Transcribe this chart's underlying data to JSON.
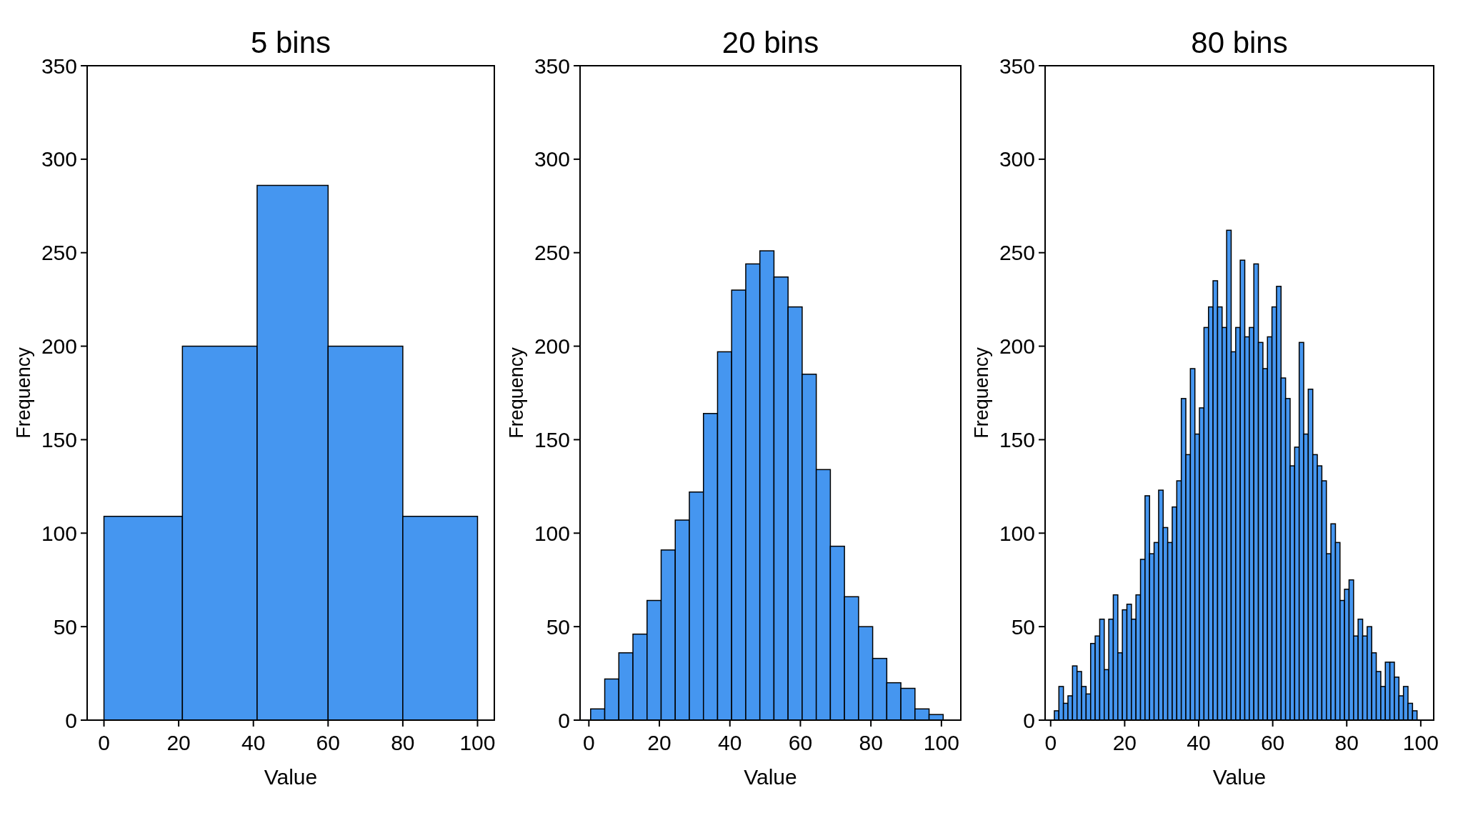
{
  "chart_data": [
    {
      "type": "histogram",
      "title": "5 bins",
      "xlabel": "Value",
      "ylabel": "Frequency",
      "color": "#4596f0",
      "bins": [
        0,
        21,
        41,
        60,
        80,
        100
      ],
      "values": [
        109,
        200,
        286,
        200,
        109
      ],
      "xlim": [
        -4.5,
        104.5
      ],
      "xticks": [
        0,
        20,
        40,
        60,
        80,
        100
      ],
      "ylim": [
        0,
        350
      ],
      "yticks": [
        0,
        50,
        100,
        150,
        200,
        250,
        300,
        350
      ],
      "grid": false
    },
    {
      "type": "histogram",
      "title": "20 bins",
      "xlabel": "Value",
      "ylabel": "Frequency",
      "color": "#4596f0",
      "bins": [
        0.5,
        4.5,
        8.5,
        12.5,
        16.5,
        20.5,
        24.5,
        28.5,
        32.5,
        36.5,
        40.5,
        44.5,
        48.5,
        52.5,
        56.5,
        60.5,
        64.5,
        68.5,
        72.5,
        76.5,
        80.5,
        84.5,
        88.5,
        92.5,
        96.5,
        100.5
      ],
      "values": [
        6,
        22,
        36,
        46,
        64,
        91,
        107,
        122,
        164,
        197,
        230,
        244,
        251,
        237,
        221,
        185,
        134,
        93,
        66,
        50,
        33,
        20,
        17,
        6,
        3
      ],
      "xlim": [
        -2.5,
        105.5
      ],
      "xticks": [
        0,
        20,
        40,
        60,
        80,
        100
      ],
      "ylim": [
        0,
        350
      ],
      "yticks": [
        0,
        50,
        100,
        150,
        200,
        250,
        300,
        350
      ],
      "grid": false
    },
    {
      "type": "histogram",
      "title": "80 bins",
      "xlabel": "Value",
      "ylabel": "Frequency",
      "color": "#4596f0",
      "bins": [
        1,
        2.225,
        3.45,
        4.675,
        5.9,
        7.125,
        8.35,
        9.575,
        10.8,
        12.025,
        13.25,
        14.475,
        15.7,
        16.925,
        18.15,
        19.375,
        20.6,
        21.825,
        23.05,
        24.275,
        25.5,
        26.725,
        27.95,
        29.175,
        30.4,
        31.625,
        32.85,
        34.075,
        35.3,
        36.525,
        37.75,
        38.975,
        40.2,
        41.425,
        42.65,
        43.875,
        45.1,
        46.325,
        47.55,
        48.775,
        50,
        51.225,
        52.45,
        53.675,
        54.9,
        56.125,
        57.35,
        58.575,
        59.8,
        61.025,
        62.25,
        63.475,
        64.7,
        65.925,
        67.15,
        68.375,
        69.6,
        70.825,
        72.05,
        73.275,
        74.5,
        75.725,
        76.95,
        78.175,
        79.4,
        80.625,
        81.85,
        83.075,
        84.3,
        85.525,
        86.75,
        87.975,
        89.2,
        90.425,
        91.65,
        92.875,
        94.1,
        95.325,
        96.55,
        97.775,
        99
      ],
      "values": [
        5,
        18,
        9,
        13,
        29,
        26,
        18,
        14,
        41,
        45,
        54,
        27,
        54,
        67,
        36,
        59,
        62,
        54,
        67,
        86,
        120,
        89,
        95,
        123,
        103,
        95,
        114,
        128,
        172,
        142,
        188,
        153,
        167,
        210,
        221,
        235,
        221,
        210,
        262,
        197,
        210,
        246,
        205,
        210,
        244,
        202,
        188,
        205,
        221,
        232,
        183,
        172,
        136,
        146,
        202,
        153,
        177,
        142,
        136,
        128,
        89,
        105,
        95,
        64,
        70,
        75,
        45,
        54,
        45,
        50,
        36,
        26,
        18,
        31,
        31,
        23,
        13,
        18,
        9,
        5
      ],
      "xlim": [
        -1.5,
        103.5
      ],
      "xticks": [
        0,
        20,
        40,
        60,
        80,
        100
      ],
      "ylim": [
        0,
        350
      ],
      "yticks": [
        0,
        50,
        100,
        150,
        200,
        250,
        300,
        350
      ],
      "grid": false
    }
  ]
}
